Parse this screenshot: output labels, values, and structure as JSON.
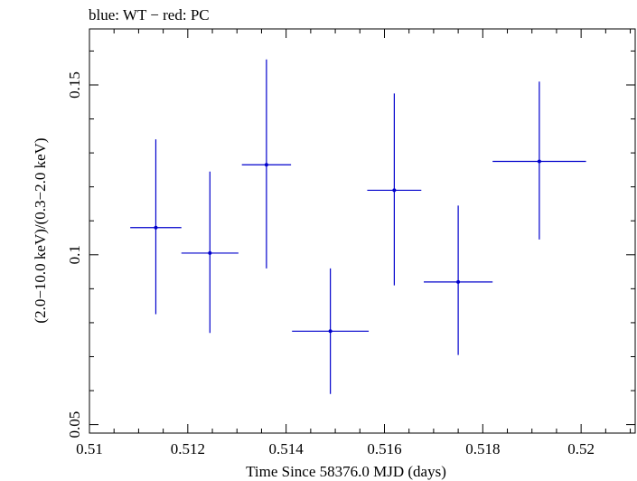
{
  "chart_data": {
    "type": "scatter",
    "title": "blue: WT − red: PC",
    "xlabel": "Time Since 58376.0 MJD (days)",
    "ylabel": "(2.0−10.0 keV)/(0.3−2.0 keV)",
    "xlim": [
      0.51,
      0.5211
    ],
    "ylim": [
      0.0475,
      0.1665
    ],
    "x_ticks": [
      0.51,
      0.512,
      0.514,
      0.516,
      0.518,
      0.52
    ],
    "x_tick_labels": [
      "0.51",
      "0.512",
      "0.514",
      "0.516",
      "0.518",
      "0.52"
    ],
    "y_ticks": [
      0.05,
      0.1,
      0.15
    ],
    "y_tick_labels": [
      "0.05",
      "0.1",
      "0.15"
    ],
    "series": [
      {
        "name": "WT",
        "color": "#0000cc",
        "points": [
          {
            "x": 0.51135,
            "y": 0.108,
            "xerr": 0.00052,
            "ylo": 0.0825,
            "yhi": 0.134
          },
          {
            "x": 0.51245,
            "y": 0.1005,
            "xerr": 0.00058,
            "ylo": 0.077,
            "yhi": 0.1245
          },
          {
            "x": 0.5136,
            "y": 0.1265,
            "xerr": 0.0005,
            "ylo": 0.096,
            "yhi": 0.1575
          },
          {
            "x": 0.5149,
            "y": 0.0775,
            "xerr": 0.00078,
            "ylo": 0.059,
            "yhi": 0.096
          },
          {
            "x": 0.5162,
            "y": 0.119,
            "xerr": 0.00055,
            "ylo": 0.091,
            "yhi": 0.1475
          },
          {
            "x": 0.5175,
            "y": 0.092,
            "xerr": 0.0007,
            "ylo": 0.0705,
            "yhi": 0.1145
          },
          {
            "x": 0.51915,
            "y": 0.1275,
            "xerr": 0.00095,
            "ylo": 0.1045,
            "yhi": 0.151
          }
        ]
      }
    ]
  }
}
